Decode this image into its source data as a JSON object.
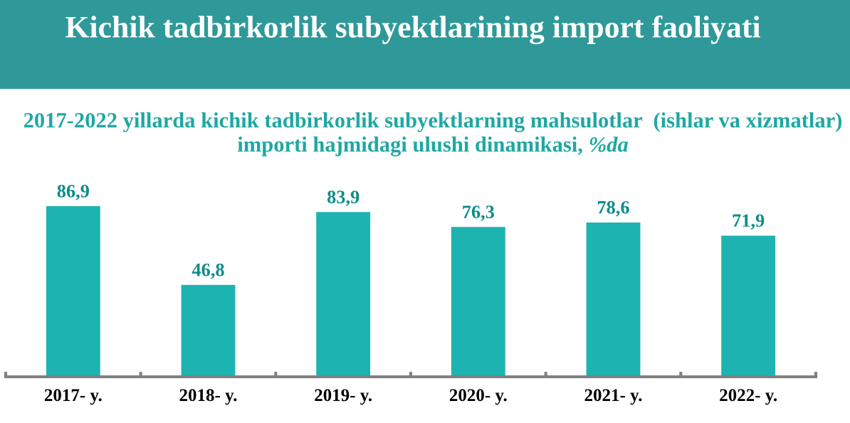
{
  "chart_data": {
    "type": "bar",
    "title": "Kichik tadbirkorlik subyektlarining import faoliyati",
    "subtitle": "2017-2022 yillarda kichik tadbirkorlik subyektlarning mahsulotlar  (ishlar va xizmatlar)\nimporti hajmidagi ulushi dinamikasi, %da",
    "categories": [
      "2017- y.",
      "2018- y.",
      "2019- y.",
      "2020- y.",
      "2021- y.",
      "2022- y."
    ],
    "values": [
      86.9,
      46.8,
      83.9,
      76.3,
      78.6,
      71.9
    ],
    "value_labels": [
      "86,9",
      "46,8",
      "83,9",
      "76,3",
      "78,6",
      "71,9"
    ],
    "color": "#1db3b0",
    "tick_labels": "x"
  }
}
